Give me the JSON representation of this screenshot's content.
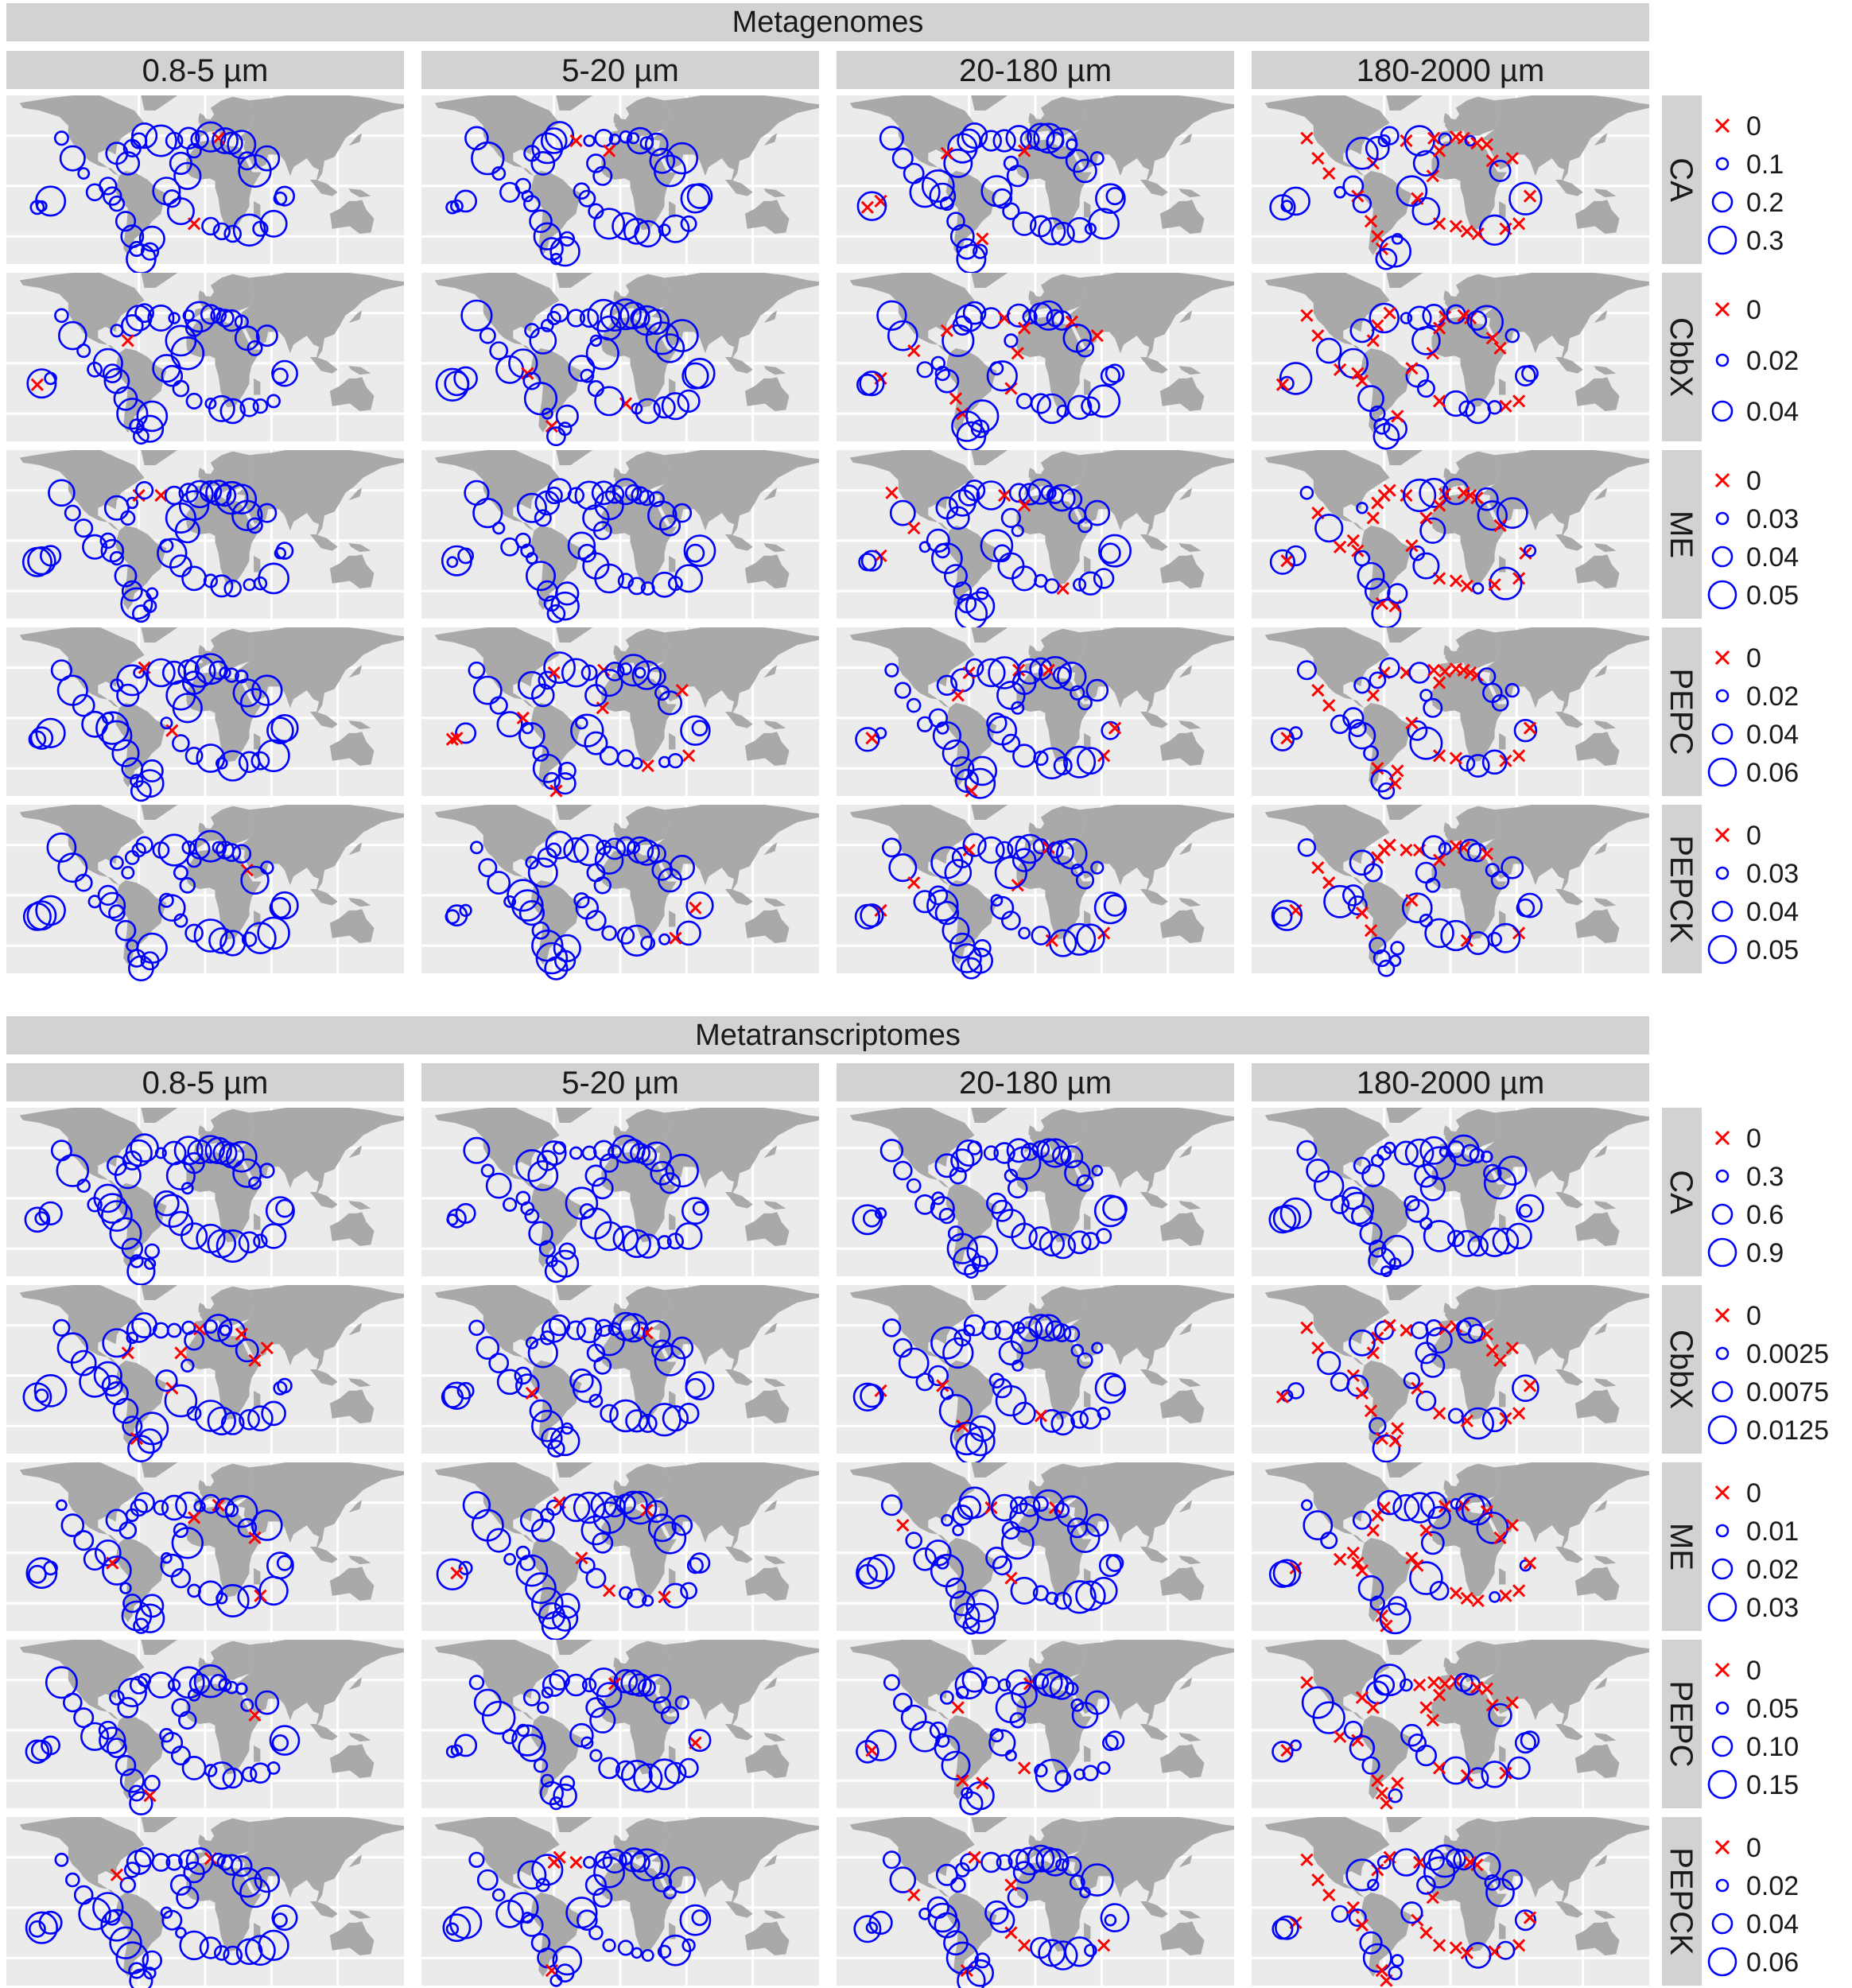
{
  "colors": {
    "circle": "#0000ff",
    "cross": "#ff0000",
    "strip": "#d2d2d2",
    "panel": "#ebebeb",
    "land": "#a9a9a9"
  },
  "chart_data": {
    "type": "scatter",
    "subtype": "faceted world maps of sampling stations; circle size = relative abundance, red cross = 0",
    "columns": [
      "0.8-5 µm",
      "5-20 µm",
      "20-180 µm",
      "180-2000 µm"
    ],
    "blocks": [
      {
        "title": "Metagenomes",
        "rows": [
          {
            "gene": "CA",
            "legend": [
              "0",
              "0.1",
              "0.2",
              "0.3"
            ],
            "legend_values": [
              0,
              0.1,
              0.2,
              0.3
            ]
          },
          {
            "gene": "CbbX",
            "legend": [
              "0",
              "0.02",
              "0.04"
            ],
            "legend_values": [
              0,
              0.02,
              0.04
            ]
          },
          {
            "gene": "ME",
            "legend": [
              "0",
              "0.03",
              "0.04",
              "0.05"
            ],
            "legend_values": [
              0,
              0.03,
              0.04,
              0.05
            ]
          },
          {
            "gene": "PEPC",
            "legend": [
              "0",
              "0.02",
              "0.04",
              "0.06"
            ],
            "legend_values": [
              0,
              0.02,
              0.04,
              0.06
            ]
          },
          {
            "gene": "PEPCK",
            "legend": [
              "0",
              "0.03",
              "0.04",
              "0.05"
            ],
            "legend_values": [
              0,
              0.03,
              0.04,
              0.05
            ]
          }
        ]
      },
      {
        "title": "Metatranscriptomes",
        "rows": [
          {
            "gene": "CA",
            "legend": [
              "0",
              "0.3",
              "0.6",
              "0.9"
            ],
            "legend_values": [
              0,
              0.3,
              0.6,
              0.9
            ]
          },
          {
            "gene": "CbbX",
            "legend": [
              "0",
              "0.0025",
              "0.0075",
              "0.0125"
            ],
            "legend_values": [
              0,
              0.0025,
              0.0075,
              0.0125
            ]
          },
          {
            "gene": "ME",
            "legend": [
              "0",
              "0.01",
              "0.02",
              "0.03"
            ],
            "legend_values": [
              0,
              0.01,
              0.02,
              0.03
            ]
          },
          {
            "gene": "PEPC",
            "legend": [
              "0",
              "0.05",
              "0.10",
              "0.15"
            ],
            "legend_values": [
              0,
              0.05,
              0.1,
              0.15
            ]
          },
          {
            "gene": "PEPCK",
            "legend": [
              "0",
              "0.02",
              "0.04",
              "0.06"
            ],
            "legend_values": [
              0,
              0.02,
              0.04,
              0.06
            ]
          }
        ]
      }
    ],
    "stations": [
      {
        "lon": -130,
        "lat": 38
      },
      {
        "lon": -120,
        "lat": 22
      },
      {
        "lon": -110,
        "lat": 10
      },
      {
        "lon": -100,
        "lat": -5
      },
      {
        "lon": -140,
        "lat": -12
      },
      {
        "lon": -148,
        "lat": -16
      },
      {
        "lon": -152,
        "lat": -17
      },
      {
        "lon": -88,
        "lat": 0
      },
      {
        "lon": -84,
        "lat": -8
      },
      {
        "lon": -80,
        "lat": -14
      },
      {
        "lon": -72,
        "lat": -28
      },
      {
        "lon": -66,
        "lat": -40
      },
      {
        "lon": -62,
        "lat": -50
      },
      {
        "lon": -58,
        "lat": -58
      },
      {
        "lon": -50,
        "lat": -52
      },
      {
        "lon": -48,
        "lat": -42
      },
      {
        "lon": -66,
        "lat": 30
      },
      {
        "lon": -60,
        "lat": 36
      },
      {
        "lon": -55,
        "lat": 40
      },
      {
        "lon": -70,
        "lat": 18
      },
      {
        "lon": -80,
        "lat": 26
      },
      {
        "lon": -40,
        "lat": 36
      },
      {
        "lon": -28,
        "lat": 36
      },
      {
        "lon": -15,
        "lat": 38
      },
      {
        "lon": -5,
        "lat": 37
      },
      {
        "lon": 5,
        "lat": 39
      },
      {
        "lon": 12,
        "lat": 38
      },
      {
        "lon": 18,
        "lat": 36
      },
      {
        "lon": 24,
        "lat": 34
      },
      {
        "lon": 33,
        "lat": 33
      },
      {
        "lon": 38,
        "lat": 20
      },
      {
        "lon": 45,
        "lat": 12
      },
      {
        "lon": 56,
        "lat": 22
      },
      {
        "lon": 68,
        "lat": -10
      },
      {
        "lon": 72,
        "lat": -8
      },
      {
        "lon": 62,
        "lat": -30
      },
      {
        "lon": 50,
        "lat": -34
      },
      {
        "lon": 40,
        "lat": -35
      },
      {
        "lon": 25,
        "lat": -38
      },
      {
        "lon": 15,
        "lat": -36
      },
      {
        "lon": 5,
        "lat": -32
      },
      {
        "lon": -10,
        "lat": -30
      },
      {
        "lon": -22,
        "lat": -20
      },
      {
        "lon": -30,
        "lat": -10
      },
      {
        "lon": -35,
        "lat": -4
      },
      {
        "lon": -16,
        "lat": 8
      },
      {
        "lon": -22,
        "lat": 18
      },
      {
        "lon": -10,
        "lat": 28
      }
    ]
  }
}
